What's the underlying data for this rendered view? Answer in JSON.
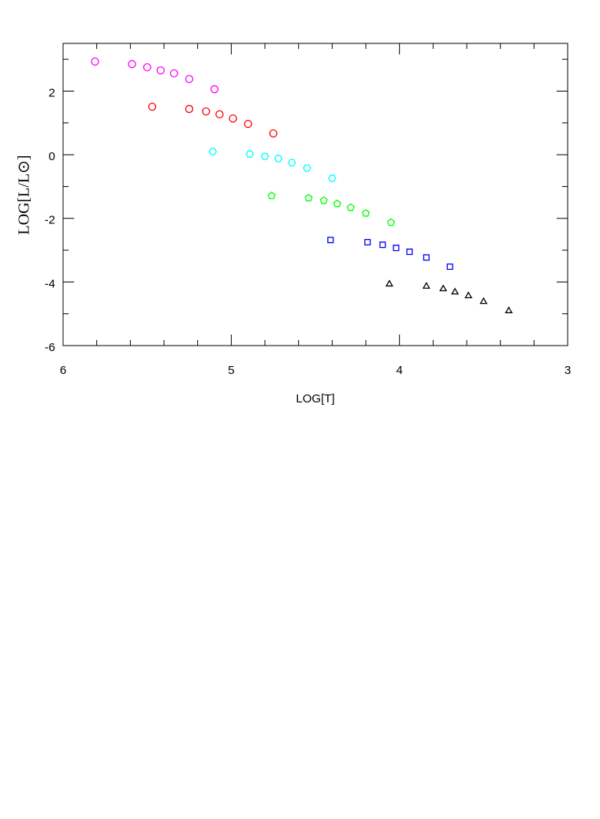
{
  "chart_data": {
    "type": "scatter",
    "xlabel": "LOG[T]",
    "ylabel": "LOG[L/L⊙]",
    "xlim": [
      6,
      3
    ],
    "ylim": [
      -6,
      3.5
    ],
    "xticks": [
      6,
      5,
      4,
      3
    ],
    "xminorticks": [
      5.8,
      5.6,
      5.4,
      5.2,
      4.8,
      4.6,
      4.4,
      4.2,
      3.8,
      3.6,
      3.4,
      3.2
    ],
    "yticks": [
      2,
      0,
      -2,
      -4,
      -6
    ],
    "yminorticks": [
      3,
      1,
      -1,
      -3,
      -5
    ],
    "series": [
      {
        "color": "#ff00ff",
        "marker": "circle",
        "x": [
          5.81,
          5.59,
          5.5,
          5.42,
          5.34,
          5.25,
          5.1
        ],
        "y": [
          2.93,
          2.85,
          2.75,
          2.65,
          2.56,
          2.38,
          2.06
        ]
      },
      {
        "color": "#ff0000",
        "marker": "circle",
        "x": [
          5.47,
          5.25,
          5.15,
          5.07,
          4.99,
          4.9,
          4.75
        ],
        "y": [
          1.51,
          1.44,
          1.36,
          1.27,
          1.14,
          0.97,
          0.67
        ]
      },
      {
        "color": "#00ffff",
        "marker": "hexagon",
        "x": [
          5.11,
          4.89,
          4.8,
          4.72,
          4.64,
          4.55,
          4.4
        ],
        "y": [
          0.1,
          0.02,
          -0.05,
          -0.12,
          -0.25,
          -0.42,
          -0.74
        ]
      },
      {
        "color": "#00ff00",
        "marker": "pentagon",
        "x": [
          4.76,
          4.54,
          4.45,
          4.37,
          4.29,
          4.2,
          4.05
        ],
        "y": [
          -1.29,
          -1.36,
          -1.44,
          -1.54,
          -1.66,
          -1.84,
          -2.13
        ]
      },
      {
        "color": "#0000ff",
        "marker": "square",
        "x": [
          4.41,
          4.19,
          4.1,
          4.02,
          3.94,
          3.84,
          3.7
        ],
        "y": [
          -2.68,
          -2.75,
          -2.83,
          -2.93,
          -3.05,
          -3.23,
          -3.52
        ]
      },
      {
        "color": "#000000",
        "marker": "triangle",
        "x": [
          4.06,
          3.84,
          3.74,
          3.67,
          3.59,
          3.5,
          3.35
        ],
        "y": [
          -4.07,
          -4.14,
          -4.22,
          -4.32,
          -4.44,
          -4.62,
          -4.91
        ]
      }
    ]
  }
}
